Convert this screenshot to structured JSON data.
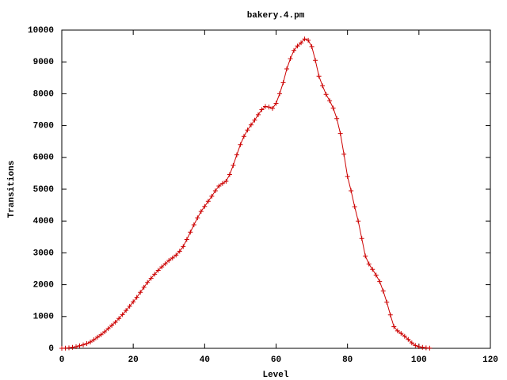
{
  "chart_data": {
    "type": "line",
    "title": "bakery.4.pm",
    "x_label": "Level",
    "y_label": "Transitions",
    "color": "#cc0000",
    "x": [
      0,
      1,
      2,
      3,
      4,
      5,
      6,
      7,
      8,
      9,
      10,
      11,
      12,
      13,
      14,
      15,
      16,
      17,
      18,
      19,
      20,
      21,
      22,
      23,
      24,
      25,
      26,
      27,
      28,
      29,
      30,
      31,
      32,
      33,
      34,
      35,
      36,
      37,
      38,
      39,
      40,
      41,
      42,
      43,
      44,
      45,
      46,
      47,
      48,
      49,
      50,
      51,
      52,
      53,
      54,
      55,
      56,
      57,
      58,
      59,
      60,
      61,
      62,
      63,
      64,
      65,
      66,
      67,
      68,
      69,
      70,
      71,
      72,
      73,
      74,
      75,
      76,
      77,
      78,
      79,
      80,
      81,
      82,
      83,
      84,
      85,
      86,
      87,
      88,
      89,
      90,
      91,
      92,
      93,
      94,
      95,
      96,
      97,
      98,
      99,
      100,
      101,
      102,
      103
    ],
    "values": [
      0,
      5,
      15,
      30,
      50,
      80,
      110,
      150,
      200,
      270,
      350,
      430,
      520,
      620,
      720,
      820,
      940,
      1060,
      1190,
      1320,
      1460,
      1600,
      1760,
      1920,
      2070,
      2200,
      2330,
      2450,
      2560,
      2660,
      2760,
      2840,
      2930,
      3050,
      3200,
      3420,
      3650,
      3880,
      4100,
      4300,
      4460,
      4620,
      4780,
      4950,
      5100,
      5180,
      5250,
      5460,
      5750,
      6080,
      6400,
      6660,
      6860,
      7020,
      7170,
      7340,
      7500,
      7600,
      7580,
      7540,
      7700,
      8000,
      8350,
      8780,
      9100,
      9360,
      9500,
      9600,
      9720,
      9680,
      9480,
      9050,
      8550,
      8250,
      7980,
      7780,
      7550,
      7220,
      6750,
      6100,
      5400,
      4950,
      4450,
      4000,
      3450,
      2900,
      2650,
      2480,
      2300,
      2100,
      1800,
      1450,
      1050,
      680,
      550,
      470,
      380,
      280,
      170,
      90,
      50,
      30,
      15,
      5
    ],
    "xlim": [
      0,
      120
    ],
    "xticks": [
      0,
      20,
      40,
      60,
      80,
      100,
      120
    ],
    "ylim": [
      0,
      10000
    ],
    "yticks": [
      0,
      1000,
      2000,
      3000,
      4000,
      5000,
      6000,
      7000,
      8000,
      9000,
      10000
    ]
  }
}
